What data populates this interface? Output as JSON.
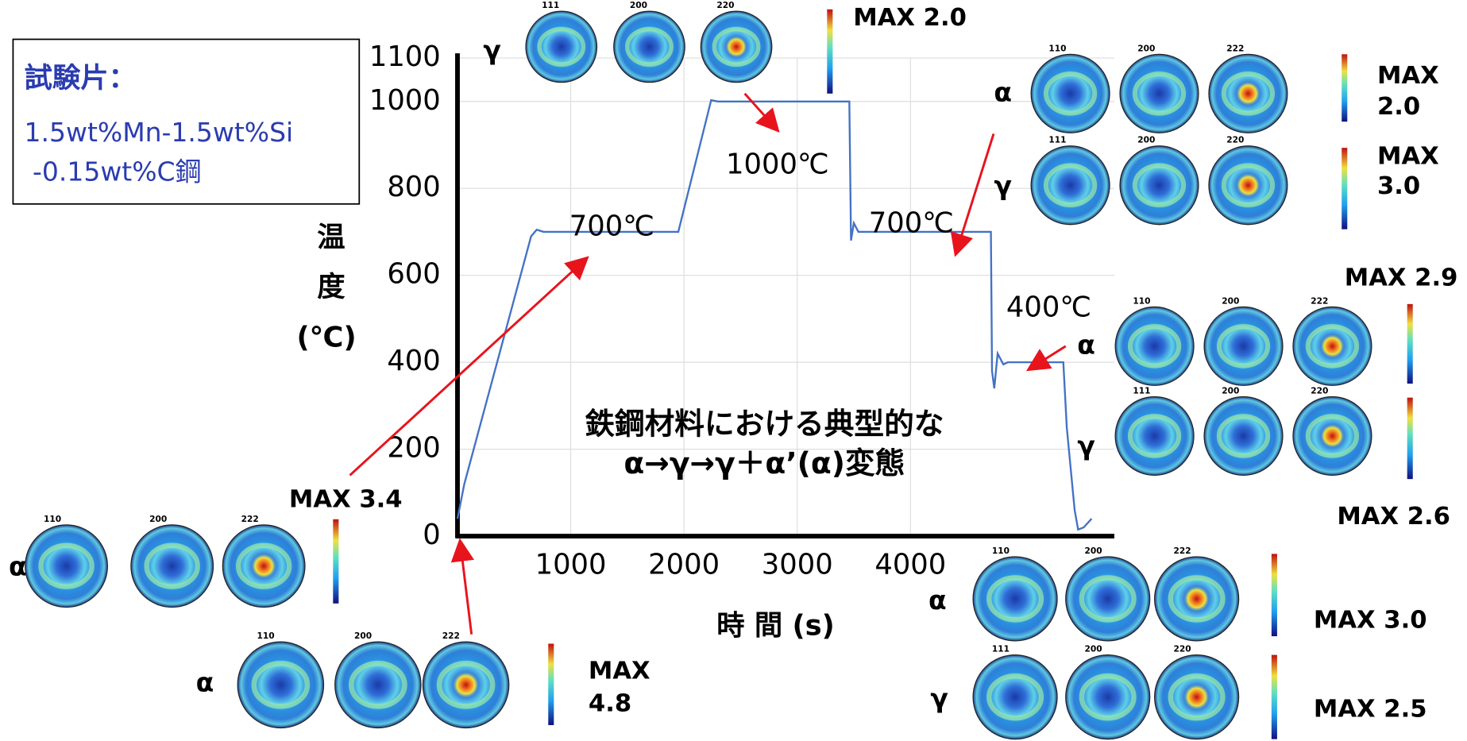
{
  "chart_data": {
    "type": "line",
    "x": [
      0,
      60,
      650,
      700,
      760,
      1950,
      2240,
      2300,
      3460,
      3475,
      3500,
      3540,
      4710,
      4720,
      4740,
      4770,
      4820,
      4860,
      5350,
      5380,
      5450,
      5480,
      5530,
      5600
    ],
    "values": [
      40,
      120,
      690,
      705,
      700,
      700,
      1003,
      1000,
      1000,
      680,
      720,
      700,
      700,
      380,
      340,
      420,
      395,
      400,
      400,
      250,
      60,
      15,
      20,
      40
    ],
    "color": "#4472c4",
    "xlim": [
      0,
      5800
    ],
    "ylim": [
      0,
      1100
    ],
    "xticks": [
      1000,
      2000,
      3000,
      4000
    ],
    "yticks": [
      0,
      200,
      400,
      600,
      800,
      1000,
      1100
    ],
    "grid": true,
    "xlabel": "時 間 (s)",
    "ylabel": [
      "温",
      "度",
      "(℃)"
    ],
    "annotations": [
      "700℃",
      "1000℃",
      "700℃",
      "400℃"
    ],
    "caption": [
      "鉄鋼材料における典型的な",
      "α→γ→γ＋α’(α)変態"
    ],
    "specimen": [
      "試験片：",
      "1.5wt%Mn-1.5wt%Si",
      " -0.15wt%C鋼"
    ],
    "pole_figures": [
      {
        "phase": "γ",
        "planes": [
          "111",
          "200",
          "220"
        ],
        "max": [
          "MAX 2.0"
        ]
      },
      {
        "phase": "α",
        "planes": [
          "110",
          "200",
          "222"
        ],
        "max": [
          "MAX",
          "2.0"
        ]
      },
      {
        "phase": "γ",
        "planes": [
          "111",
          "200",
          "220"
        ],
        "max": [
          "MAX",
          "3.0"
        ]
      },
      {
        "phase": "α",
        "planes": [
          "110",
          "200",
          "222"
        ],
        "max": [
          "MAX 2.9"
        ]
      },
      {
        "phase": "γ",
        "planes": [
          "111",
          "200",
          "220"
        ],
        "max": [
          "MAX 2.6"
        ]
      },
      {
        "phase": "α",
        "planes": [
          "110",
          "200",
          "222"
        ],
        "max": [
          "MAX 3.4"
        ]
      },
      {
        "phase": "α",
        "planes": [
          "110",
          "200",
          "222"
        ],
        "max": [
          "MAX",
          "4.8"
        ]
      },
      {
        "phase": "α",
        "planes": [
          "110",
          "200",
          "222"
        ],
        "max": [
          "MAX 3.0"
        ]
      },
      {
        "phase": "γ",
        "planes": [
          "111",
          "200",
          "220"
        ],
        "max": [
          "MAX 2.5"
        ]
      }
    ]
  }
}
